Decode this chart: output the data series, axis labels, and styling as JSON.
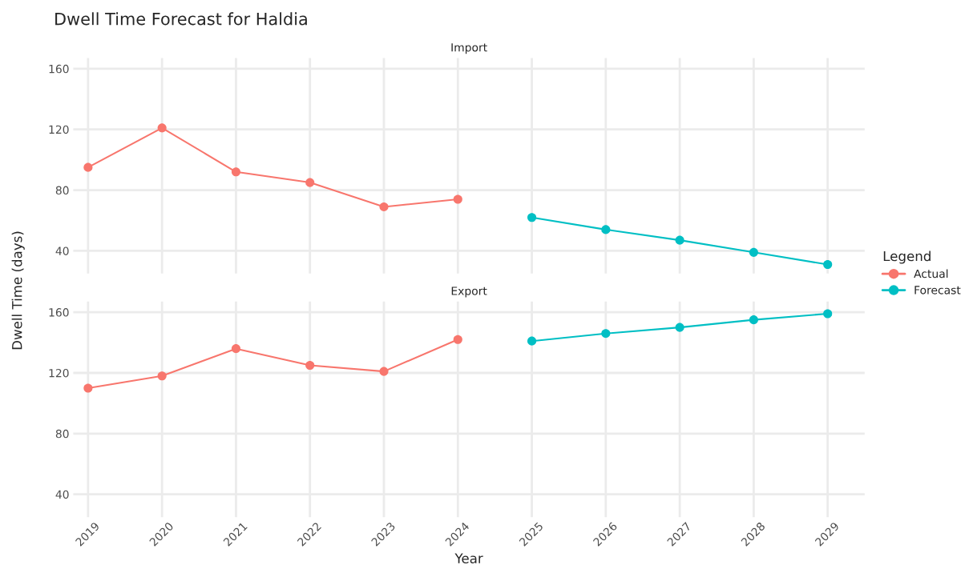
{
  "chart_data": [
    {
      "type": "line",
      "title": "Dwell Time Forecast for Haldia",
      "subtitle": "Import",
      "legend_title": "Legend",
      "legend": "right",
      "marker": "circle",
      "line_style": "solid",
      "grid": true,
      "tick_labels": "y",
      "xlim": [
        2018.8,
        2029.5
      ],
      "xticks": [
        2019,
        2020,
        2021,
        2022,
        2023,
        2024,
        2025,
        2026,
        2027,
        2028,
        2029
      ],
      "ylim": [
        25,
        167
      ],
      "yticks": [
        40,
        80,
        120,
        160
      ],
      "series": [
        {
          "name": "Actual",
          "color": "#f8766d",
          "x": [
            2019,
            2020,
            2021,
            2022,
            2023,
            2024
          ],
          "values": [
            95,
            121,
            92,
            85,
            69,
            74
          ]
        },
        {
          "name": "Forecast",
          "color": "#00bfc4",
          "x": [
            2025,
            2026,
            2027,
            2028,
            2029
          ],
          "values": [
            62,
            54,
            47,
            39,
            31
          ]
        }
      ]
    },
    {
      "type": "line",
      "subtitle": "Export",
      "xlabel": "Year",
      "ylabel": "Dwell Time (days)",
      "marker": "circle",
      "line_style": "solid",
      "grid": true,
      "xlim": [
        2018.8,
        2029.5
      ],
      "xticks": [
        2019,
        2020,
        2021,
        2022,
        2023,
        2024,
        2025,
        2026,
        2027,
        2028,
        2029
      ],
      "ylim": [
        25,
        167
      ],
      "yticks": [
        40,
        80,
        120,
        160
      ],
      "series": [
        {
          "color": "#f8766d",
          "x": [
            2019,
            2020,
            2021,
            2022,
            2023,
            2024
          ],
          "values": [
            110,
            118,
            136,
            125,
            121,
            142
          ]
        },
        {
          "color": "#00bfc4",
          "x": [
            2025,
            2026,
            2027,
            2028,
            2029
          ],
          "values": [
            141,
            146,
            150,
            155,
            159
          ]
        }
      ]
    }
  ]
}
